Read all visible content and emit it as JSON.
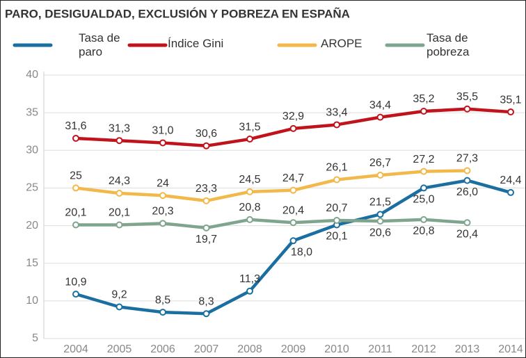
{
  "chart_data": {
    "type": "line",
    "title": "PARO, DESIGUALDAD, EXCLUSIÓN Y POBREZA EN ESPAÑA",
    "categories": [
      "2004",
      "2005",
      "2006",
      "2007",
      "2008",
      "2009",
      "2010",
      "2011",
      "2012",
      "2013",
      "2014"
    ],
    "ylim": [
      5,
      40
    ],
    "yticks": [
      5,
      10,
      15,
      20,
      25,
      30,
      35,
      40
    ],
    "grid": true,
    "series": [
      {
        "name": "Tasa de paro",
        "color": "#1a6fa0",
        "values": [
          10.9,
          9.2,
          8.5,
          8.3,
          11.3,
          18.0,
          20.1,
          21.5,
          25.0,
          26.0,
          24.4
        ],
        "value_labels": [
          "10,9",
          "9,2",
          "8,5",
          "8,3",
          "11,3",
          "18,0",
          "20,1",
          "21,5",
          "25,0",
          "26,0",
          "24,4"
        ]
      },
      {
        "name": "Índice Gini",
        "color": "#c0131b",
        "values": [
          31.6,
          31.3,
          31.0,
          30.6,
          31.5,
          32.9,
          33.4,
          34.4,
          35.2,
          35.5,
          35.1
        ],
        "value_labels": [
          "31,6",
          "31,3",
          "31,0",
          "30,6",
          "31,5",
          "32,9",
          "33,4",
          "34,4",
          "35,2",
          "35,5",
          "35,1"
        ]
      },
      {
        "name": "AROPE",
        "color": "#f2b94a",
        "values": [
          25,
          24.3,
          24,
          23.3,
          24.5,
          24.7,
          26.1,
          26.7,
          27.2,
          27.3,
          null
        ],
        "value_labels": [
          "25",
          "24,3",
          "24",
          "23,3",
          "24,5",
          "24,7",
          "26,1",
          "26,7",
          "27,2",
          "27,3",
          null
        ]
      },
      {
        "name": "Tasa de pobreza",
        "color": "#7fa58e",
        "values": [
          20.1,
          20.1,
          20.3,
          19.7,
          20.8,
          20.4,
          20.7,
          20.6,
          20.8,
          20.4,
          null
        ],
        "value_labels": [
          "20,1",
          "20,1",
          "20,3",
          "19,7",
          "20,8",
          "20,4",
          "20,7",
          "20,6",
          "20,8",
          "20,4",
          null
        ]
      }
    ]
  }
}
